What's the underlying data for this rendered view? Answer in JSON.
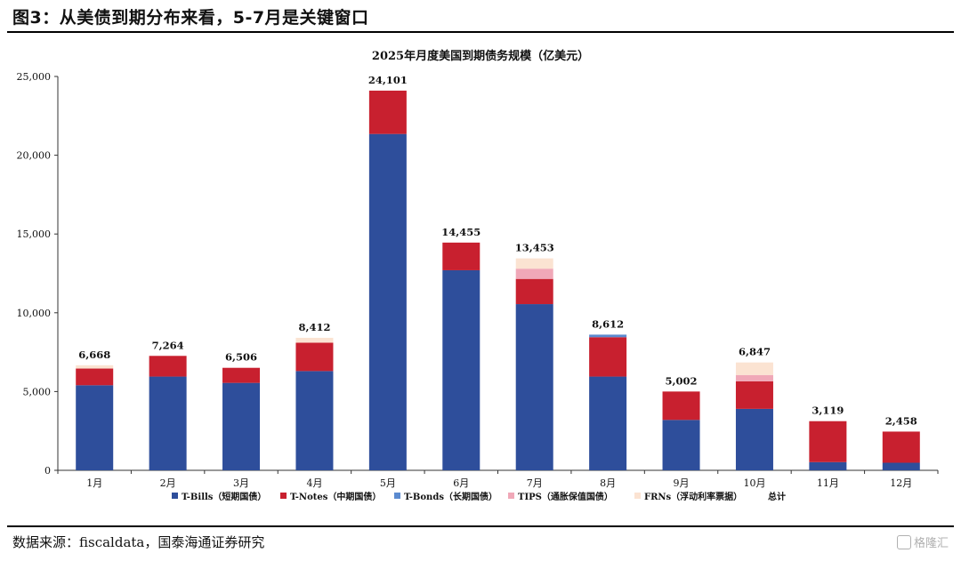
{
  "header": {
    "title": "图3：从美债到期分布来看，5-7月是关键窗口"
  },
  "source": "数据来源：fiscaldata，国泰海通证券研究",
  "watermark": "格隆汇",
  "chart_data": {
    "type": "bar",
    "stacked": true,
    "title": "2025年月度美国到期债务规模（亿美元）",
    "categories": [
      "1月",
      "2月",
      "3月",
      "4月",
      "5月",
      "6月",
      "7月",
      "8月",
      "9月",
      "10月",
      "11月",
      "12月"
    ],
    "ylim": [
      0,
      25000
    ],
    "yticks": [
      0,
      5000,
      10000,
      15000,
      20000,
      25000
    ],
    "ytick_labels": [
      "0",
      "5,000",
      "10,000",
      "15,000",
      "20,000",
      "25,000"
    ],
    "grid": false,
    "legend_position": "bottom",
    "series": [
      {
        "name": "T-Bills（短期国债）",
        "color": "#2E4E9B",
        "values": [
          5400,
          5950,
          5550,
          6300,
          21350,
          12700,
          10550,
          5950,
          3200,
          3900,
          520,
          480
        ]
      },
      {
        "name": "T-Notes（中期国债）",
        "color": "#C8202F",
        "values": [
          1060,
          1314,
          956,
          1800,
          2751,
          1755,
          1600,
          2500,
          1802,
          1750,
          2599,
          1978
        ]
      },
      {
        "name": "T-Bonds（长期国债）",
        "color": "#5B8BD0",
        "values": [
          0,
          0,
          0,
          0,
          0,
          0,
          0,
          162,
          0,
          0,
          0,
          0
        ]
      },
      {
        "name": "TIPS（通胀保值国债）",
        "color": "#F0A8B8",
        "values": [
          0,
          0,
          0,
          0,
          0,
          0,
          650,
          0,
          0,
          400,
          0,
          0
        ]
      },
      {
        "name": "FRNs（浮动利率票据）",
        "color": "#FBE3D2",
        "values": [
          208,
          0,
          0,
          312,
          0,
          0,
          653,
          0,
          0,
          797,
          0,
          0
        ]
      }
    ],
    "totals_series_name": "总计",
    "totals": [
      6668,
      7264,
      6506,
      8412,
      24101,
      14455,
      13453,
      8612,
      5002,
      6847,
      3119,
      2458
    ],
    "total_labels": [
      "6,668",
      "7,264",
      "6,506",
      "8,412",
      "24,101",
      "14,455",
      "13,453",
      "8,612",
      "5,002",
      "6,847",
      "3,119",
      "2,458"
    ]
  }
}
